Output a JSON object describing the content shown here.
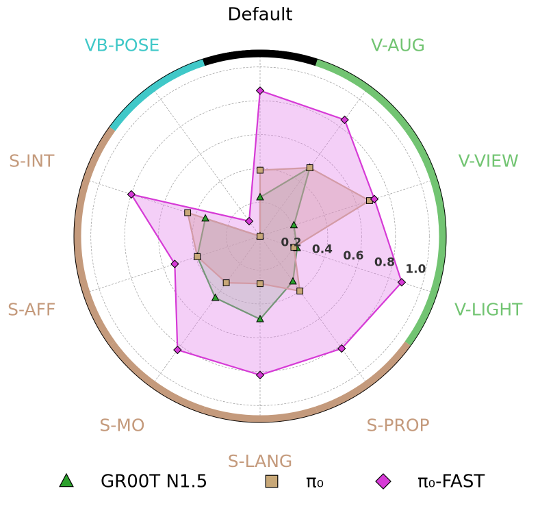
{
  "chart_data": {
    "type": "radar",
    "title": "Default",
    "categories": [
      null,
      "V-AUG",
      "V-VIEW",
      "V-LIGHT",
      "S-PROP",
      "S-LANG",
      "S-MO",
      "S-AFF",
      "S-INT",
      "VB-POSE"
    ],
    "category_colors": [
      "#000000",
      "#72c472",
      "#72c472",
      "#72c472",
      "#c49a7c",
      "#c49a7c",
      "#c49a7c",
      "#c49a7c",
      "#c49a7c",
      "#40c8c8"
    ],
    "ylim": [
      0,
      1.1
    ],
    "yticks": [
      0.2,
      0.4,
      0.6,
      0.8,
      {
        "value": 1,
        "label": "1.0"
      }
    ],
    "grid": true,
    "legend": "bottom",
    "series": [
      {
        "name": "GR00T N1.5",
        "color": "#2ca02c",
        "fill": "#8fd48f",
        "marker": "triangle",
        "values": [
          0.23,
          0.5,
          0.21,
          0.23,
          0.33,
          0.49,
          0.45,
          0.39,
          0.34,
          0
        ]
      },
      {
        "name": "π₀",
        "color": "#c8a878",
        "fill": "#c8a878",
        "marker": "square",
        "values": [
          0.39,
          0.5,
          0.68,
          0.21,
          0.4,
          0.28,
          0.34,
          0.39,
          0.45,
          0
        ]
      },
      {
        "name": "π₀-FAST",
        "color": "#d63ad6",
        "fill": "#e488ec",
        "marker": "diamond",
        "values": [
          0.86,
          0.85,
          0.71,
          0.88,
          0.82,
          0.82,
          0.83,
          0.53,
          0.8,
          0.11
        ]
      }
    ]
  }
}
